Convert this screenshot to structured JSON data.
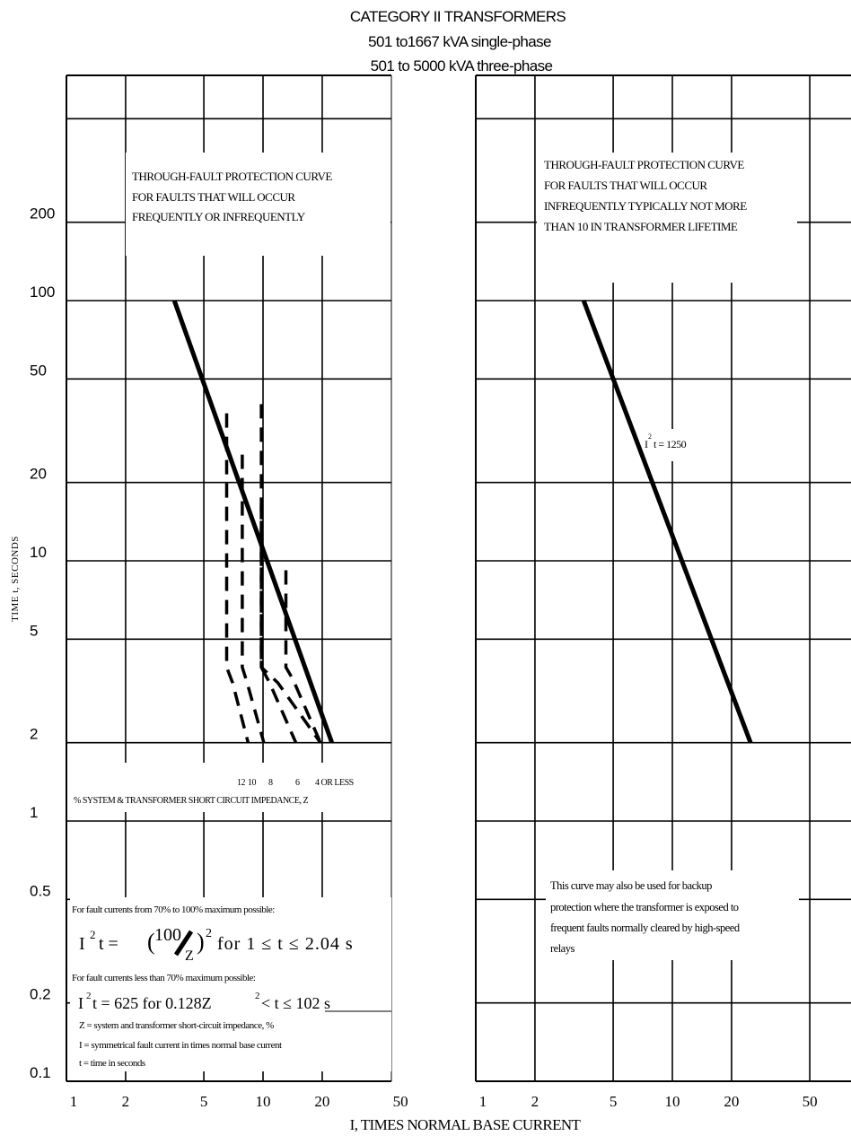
{
  "title_lines": [
    "CATEGORY II TRANSFORMERS",
    "501 to1667 kVA single-phase",
    "501 to 5000 kVA three-phase"
  ],
  "ylabel": "TIME t, SECONDS",
  "xlabel": "I, TIMES NORMAL BASE CURRENT",
  "left_panel": {
    "heading": [
      "THROUGH-FAULT PROTECTION CURVE",
      "FOR FAULTS THAT WILL OCCUR",
      "FREQUENTLY OR INFREQUENTLY"
    ],
    "impedance_ticks": [
      "12",
      "10",
      "8",
      "6",
      "4 OR LESS"
    ],
    "impedance_caption": "% SYSTEM & TRANSFORMER SHORT CIRCUIT IMPEDANCE, Z",
    "formula1_caption": "For fault currents from 70% to 100% maximum possible:",
    "formula1_left": "I",
    "formula1_exp": "2",
    "formula1_mid": "t  =",
    "formula1_num": "100",
    "formula1_den": "Z",
    "formula1_right": "for 1 ≤ t ≤ 2.04 s",
    "formula2_caption": "For fault currents less than 70% maximum possible:",
    "formula2_a": "I",
    "formula2_exp": "2",
    "formula2_b": "t = 625  for  0.128Z",
    "formula2_exp2": "2",
    "formula2_c": " < t ≤ 102  s",
    "legend_lines": [
      "Z = system and transformer short-circuit impedance, %",
      "I = symmetrical fault current in times normal base current",
      "t = time in seconds"
    ]
  },
  "right_panel": {
    "heading": [
      "THROUGH-FAULT PROTECTION CURVE",
      "FOR FAULTS THAT WILL OCCUR",
      "INFREQUENTLY TYPICALLY NOT MORE",
      "THAN 10 IN TRANSFORMER LIFETIME"
    ],
    "curve_label_a": "I",
    "curve_label_exp": "2",
    "curve_label_b": "t = 1250",
    "note": [
      "This curve may also be used for backup",
      "protection where the transformer is exposed to",
      "frequent faults normally cleared by high-speed",
      "relays"
    ]
  },
  "chart_data": {
    "type": "line",
    "x_scale": "log",
    "y_scale": "log",
    "xlim": [
      1,
      50
    ],
    "ylim": [
      0.1,
      1000
    ],
    "x_ticks": [
      1,
      2,
      5,
      10,
      20,
      50
    ],
    "x_tick_labels": [
      "1",
      "2",
      "5",
      "10",
      "20",
      "50"
    ],
    "y_ticks": [
      0.1,
      0.2,
      0.5,
      1,
      2,
      5,
      10,
      20,
      50,
      100,
      200
    ],
    "y_tick_labels": [
      "0.1",
      "0.2",
      "0.5",
      "1",
      "2",
      "5",
      "10",
      "20",
      "50",
      "100",
      "200"
    ],
    "panels": [
      {
        "series": [
          {
            "style": "solid",
            "x": [
              3.54,
              22.4
            ],
            "y": [
              100,
              2
            ]
          },
          {
            "style": "dashed",
            "z": 4,
            "x": [
              9.8,
              9.8,
              11.9,
              19.6
            ],
            "y": [
              40,
              3.9,
              3.4,
              2
            ]
          },
          {
            "style": "dashed",
            "z": 6,
            "x": [
              13.07,
              13.07,
              14.2,
              19.6
            ],
            "y": [
              9.2,
              3.9,
              3.5,
              2
            ]
          },
          {
            "style": "dashed",
            "z": 8,
            "x": [
              9.8,
              9.8,
              10.8,
              14.7
            ],
            "y": [
              16.4,
              3.9,
              3.4,
              2
            ]
          },
          {
            "style": "dashed",
            "z": 10,
            "x": [
              7.84,
              7.84,
              8.3,
              10.1
            ],
            "y": [
              25.6,
              3.9,
              3.4,
              2
            ]
          },
          {
            "style": "dashed",
            "z": 12,
            "x": [
              6.53,
              6.53,
              7,
              8.4
            ],
            "y": [
              36.9,
              3.9,
              3.4,
              2
            ]
          }
        ]
      },
      {
        "series": [
          {
            "style": "solid",
            "x": [
              3.54,
              25
            ],
            "y": [
              100,
              2
            ]
          }
        ]
      }
    ]
  }
}
